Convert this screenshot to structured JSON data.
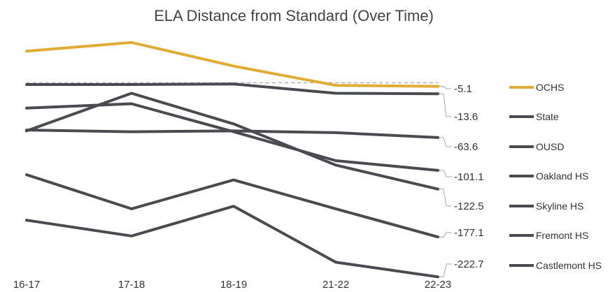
{
  "chart_data": {
    "type": "line",
    "title": "ELA Distance from Standard (Over Time)",
    "xlabel": "",
    "ylabel": "",
    "categories": [
      "16-17",
      "17-18",
      "18-19",
      "21-22",
      "22-23"
    ],
    "ylim": [
      -240,
      60
    ],
    "grid": false,
    "legend_position": "right",
    "reference_line": {
      "value": -1,
      "style": "dashed",
      "color": "#b0b0b0"
    },
    "series": [
      {
        "name": "OCHS",
        "color": "#e1ac34",
        "values": [
          35,
          45,
          18,
          -4,
          -5.1
        ],
        "end_label": "-5.1"
      },
      {
        "name": "State",
        "color": "#4a4b50",
        "values": [
          -3,
          -3,
          -2.5,
          -13,
          -13.6
        ],
        "end_label": "-13.6"
      },
      {
        "name": "OUSD",
        "color": "#4a4b50",
        "values": [
          -55,
          -57,
          -56,
          -58,
          -63.6
        ],
        "end_label": "-63.6"
      },
      {
        "name": "Oakland HS",
        "color": "#4a4b50",
        "values": [
          -30,
          -25,
          -57,
          -90,
          -101.1
        ],
        "end_label": "-101.1"
      },
      {
        "name": "Skyline HS",
        "color": "#4a4b50",
        "values": [
          -56,
          -13,
          -48,
          -95,
          -122.5
        ],
        "end_label": "-122.5"
      },
      {
        "name": "Fremont HS",
        "color": "#4a4b50",
        "values": [
          -106,
          -145,
          -112,
          -145,
          -177.1
        ],
        "end_label": "-177.1"
      },
      {
        "name": "Castlemont HS",
        "color": "#4a4b50",
        "values": [
          -158,
          -176,
          -142,
          -206,
          -222.7
        ],
        "end_label": "-222.7"
      }
    ]
  }
}
